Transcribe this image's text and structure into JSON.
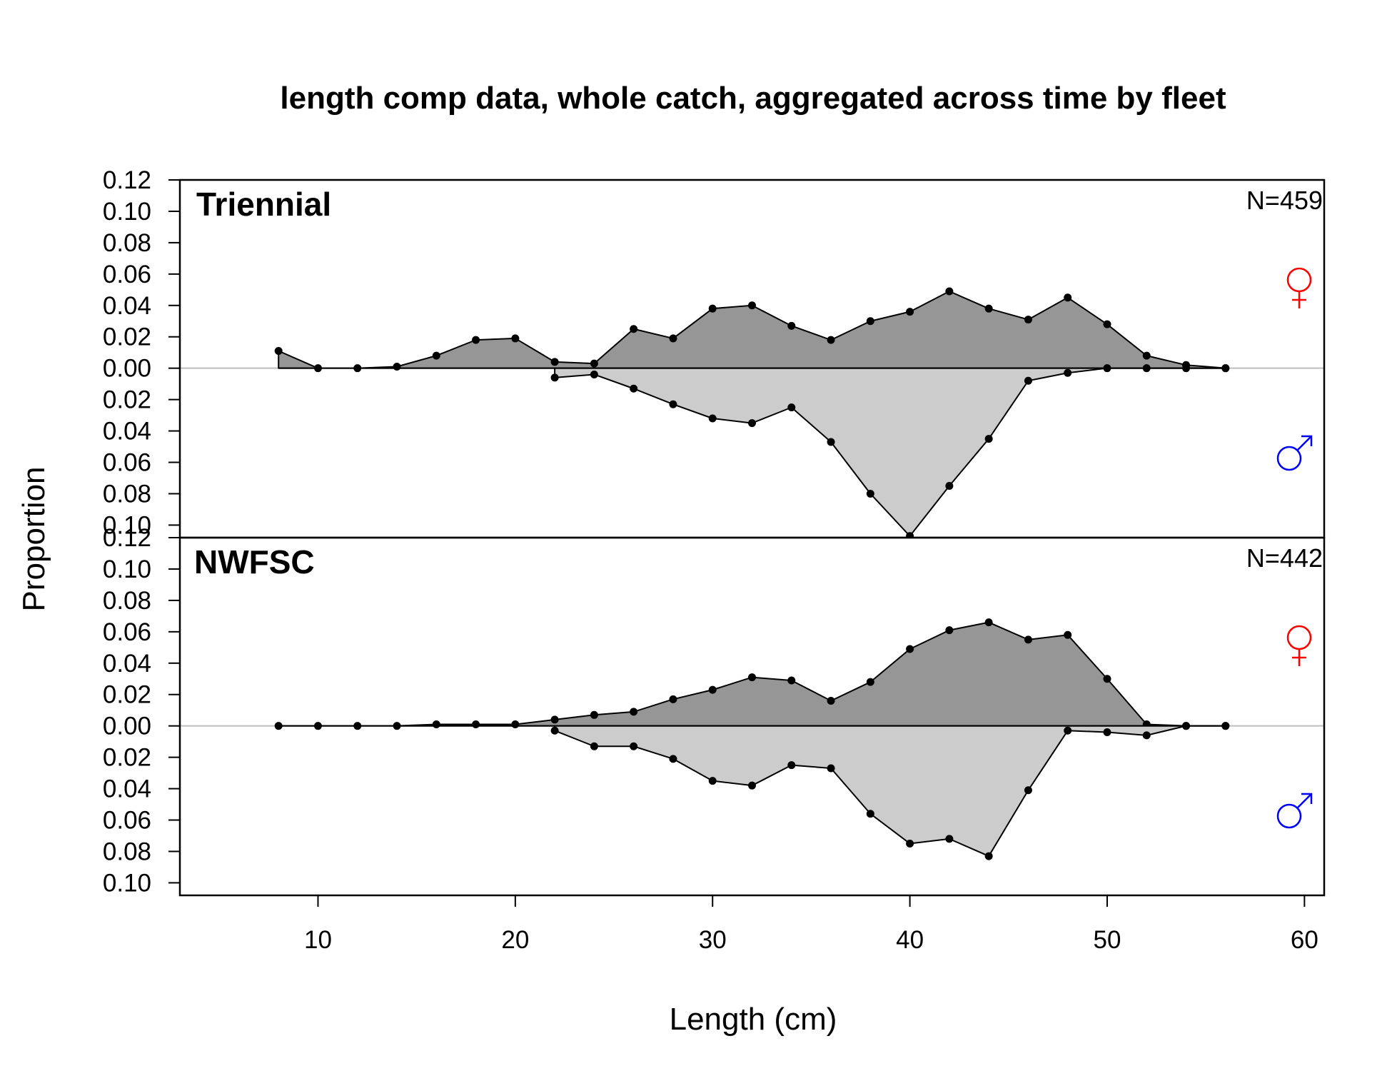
{
  "chart_data": {
    "type": "area",
    "title": "length comp data, whole catch, aggregated across time by fleet",
    "xlabel": "Length (cm)",
    "ylabel": "Proportion",
    "xlim": [
      3,
      61
    ],
    "x_ticks": [
      10,
      20,
      30,
      40,
      50,
      60
    ],
    "x_tick_labels": [
      "10",
      "20",
      "30",
      "40",
      "50",
      "60"
    ],
    "y_tick_values": [
      0.12,
      0.1,
      0.08,
      0.06,
      0.04,
      0.02,
      0.0,
      -0.02,
      -0.04,
      -0.06,
      -0.08,
      -0.1
    ],
    "y_tick_labels": [
      "0.12",
      "0.10",
      "0.08",
      "0.06",
      "0.04",
      "0.02",
      "0.00",
      "0.02",
      "0.04",
      "0.06",
      "0.08",
      "0.10"
    ],
    "colors": {
      "female_fill": "#969696",
      "male_fill": "#cccccc",
      "zero_line": "#bebebe",
      "female_symbol": "#ff0000",
      "male_symbol": "#0000ff"
    },
    "panels": [
      {
        "label": "Triennial",
        "n_label": "N=459",
        "ylim": [
          -0.108,
          0.12
        ],
        "series": [
          {
            "sex": "female",
            "x": [
              8,
              10,
              12,
              14,
              16,
              18,
              20,
              22,
              24,
              26,
              28,
              30,
              32,
              34,
              36,
              38,
              40,
              42,
              44,
              46,
              48,
              50,
              52,
              54,
              56
            ],
            "values": [
              0.011,
              0.0,
              0.0,
              0.001,
              0.008,
              0.018,
              0.019,
              0.004,
              0.003,
              0.025,
              0.019,
              0.038,
              0.04,
              0.027,
              0.018,
              0.03,
              0.036,
              0.049,
              0.038,
              0.031,
              0.045,
              0.028,
              0.008,
              0.002,
              0.0
            ]
          },
          {
            "sex": "male",
            "x": [
              22,
              24,
              26,
              28,
              30,
              32,
              34,
              36,
              38,
              40,
              42,
              44,
              46,
              48,
              50,
              52,
              54,
              56
            ],
            "values": [
              0.006,
              0.004,
              0.013,
              0.023,
              0.032,
              0.035,
              0.025,
              0.047,
              0.08,
              0.107,
              0.075,
              0.045,
              0.008,
              0.003,
              0.0,
              0.0,
              0.0,
              0.0
            ]
          }
        ]
      },
      {
        "label": "NWFSC",
        "n_label": "N=442",
        "ylim": [
          -0.108,
          0.12
        ],
        "series": [
          {
            "sex": "female",
            "x": [
              8,
              10,
              12,
              14,
              16,
              18,
              20,
              22,
              24,
              26,
              28,
              30,
              32,
              34,
              36,
              38,
              40,
              42,
              44,
              46,
              48,
              50,
              52,
              54,
              56
            ],
            "values": [
              0.0,
              0.0,
              0.0,
              0.0,
              0.001,
              0.001,
              0.001,
              0.004,
              0.007,
              0.009,
              0.017,
              0.023,
              0.031,
              0.029,
              0.016,
              0.028,
              0.049,
              0.061,
              0.066,
              0.055,
              0.058,
              0.03,
              0.001,
              0.0,
              0.0
            ]
          },
          {
            "sex": "male",
            "x": [
              22,
              24,
              26,
              28,
              30,
              32,
              34,
              36,
              38,
              40,
              42,
              44,
              46,
              48,
              50,
              52,
              54,
              56
            ],
            "values": [
              0.003,
              0.013,
              0.013,
              0.021,
              0.035,
              0.038,
              0.025,
              0.027,
              0.056,
              0.075,
              0.072,
              0.083,
              0.041,
              0.003,
              0.004,
              0.006,
              0.0,
              0.0
            ]
          }
        ]
      }
    ]
  }
}
